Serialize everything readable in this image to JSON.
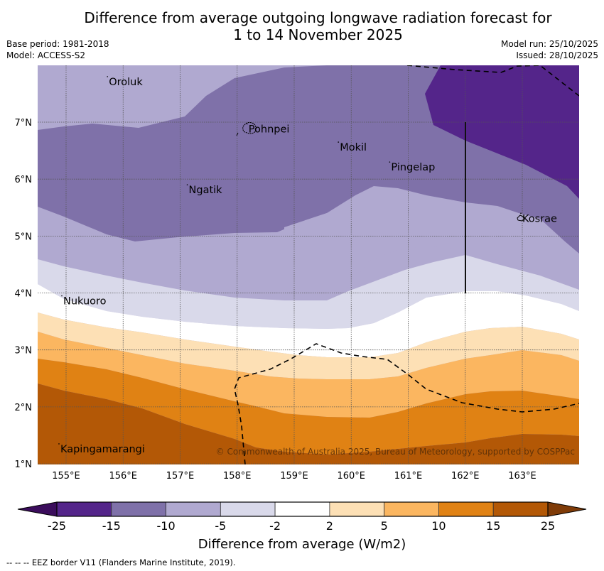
{
  "header": {
    "title_line1": "Difference from average outgoing longwave radiation forecast for",
    "title_line2": "1 to 14 November 2025",
    "base_period": "Base period: 1981-2018",
    "model": "Model: ACCESS-S2",
    "model_run": "Model run: 25/10/2025",
    "issued": "Issued: 28/10/2025"
  },
  "map": {
    "lon_ticks": [
      "155°E",
      "156°E",
      "157°E",
      "158°E",
      "159°E",
      "160°E",
      "161°E",
      "162°E",
      "163°E"
    ],
    "lat_ticks": [
      "7°N",
      "6°N",
      "5°N",
      "4°N",
      "3°N",
      "2°N",
      "1°N"
    ],
    "lon_range": [
      154.5,
      164.0
    ],
    "lat_range": [
      1.0,
      8.0
    ],
    "places": [
      {
        "name": "Oroluk",
        "lon": 155.75,
        "lat": 7.7
      },
      {
        "name": "Pohnpei",
        "lon": 158.2,
        "lat": 6.87
      },
      {
        "name": "Mokil",
        "lon": 159.8,
        "lat": 6.55
      },
      {
        "name": "Pingelap",
        "lon": 160.7,
        "lat": 6.2
      },
      {
        "name": "Ngatik",
        "lon": 157.15,
        "lat": 5.8
      },
      {
        "name": "Kosrae",
        "lon": 163.0,
        "lat": 5.3
      },
      {
        "name": "Nukuoro",
        "lon": 154.95,
        "lat": 3.85
      },
      {
        "name": "Kapingamarangi",
        "lon": 154.9,
        "lat": 1.25
      }
    ],
    "copyright": "© Commonwealth of Australia 2025, Bureau of Meteorology, supported by COSPPac"
  },
  "colorbar": {
    "title": "Difference from average (W/m2)",
    "tick_labels": [
      "-25",
      "-15",
      "-10",
      "-5",
      "-2",
      "2",
      "5",
      "10",
      "15",
      "25"
    ],
    "bins": [
      {
        "range": "< -25",
        "color": "#3b0d5c"
      },
      {
        "range": "-25 to -15",
        "color": "#54258a"
      },
      {
        "range": "-15 to -10",
        "color": "#7f71a9"
      },
      {
        "range": "-10 to -5",
        "color": "#b0a9d0"
      },
      {
        "range": "-5 to -2",
        "color": "#d9d9ea"
      },
      {
        "range": "-2 to 2",
        "color": "#ffffff"
      },
      {
        "range": "2 to 5",
        "color": "#fde0b5"
      },
      {
        "range": "5 to 10",
        "color": "#fbb660"
      },
      {
        "range": "10 to 15",
        "color": "#e08214"
      },
      {
        "range": "15 to 25",
        "color": "#b35806"
      },
      {
        "range": "> 25",
        "color": "#7f3b08"
      }
    ]
  },
  "footer": {
    "eez_note": "--  --  -- EEZ border V11 (Flanders Marine Institute, 2019)."
  }
}
